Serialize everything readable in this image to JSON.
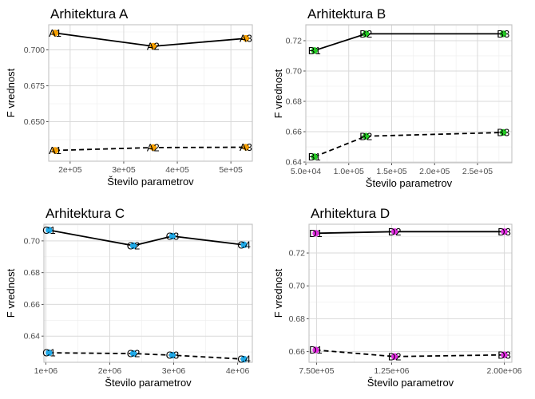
{
  "chart_data": [
    {
      "type": "line",
      "title": "Arhitektura A",
      "xlabel": "Število parametrov",
      "ylabel": "F vrednost",
      "xlim": [
        160000,
        540000
      ],
      "ylim": [
        0.6225,
        0.7175
      ],
      "x_ticks": [
        200000,
        300000,
        400000,
        500000
      ],
      "x_tick_labels": [
        "2e+05",
        "3e+05",
        "4e+05",
        "5e+05"
      ],
      "y_ticks": [
        0.65,
        0.675,
        0.7
      ],
      "y_tick_labels": [
        "0.650",
        "0.675",
        "0.700"
      ],
      "color": "#F8A000",
      "series": [
        {
          "style": "solid",
          "points": [
            {
              "x": 172000,
              "y": 0.7117,
              "label": "A1"
            },
            {
              "x": 355000,
              "y": 0.7025,
              "label": "A2"
            },
            {
              "x": 528000,
              "y": 0.708,
              "label": "A3"
            }
          ]
        },
        {
          "style": "dashed",
          "points": [
            {
              "x": 172000,
              "y": 0.63,
              "label": "A1"
            },
            {
              "x": 355000,
              "y": 0.632,
              "label": "A2"
            },
            {
              "x": 528000,
              "y": 0.6322,
              "label": "A3"
            }
          ]
        }
      ],
      "grid": true,
      "legend": "none"
    },
    {
      "type": "line",
      "title": "Arhitektura B",
      "xlabel": "Število parametrov",
      "ylabel": "F vrednost",
      "xlim": [
        50000,
        290000
      ],
      "ylim": [
        0.6395,
        0.7305
      ],
      "x_ticks": [
        50000,
        100000,
        150000,
        200000,
        250000
      ],
      "x_tick_labels": [
        "5.0e+04",
        "1.0e+05",
        "1.5e+05",
        "2.0e+05",
        "2.5e+05"
      ],
      "y_ticks": [
        0.64,
        0.66,
        0.68,
        0.7,
        0.72
      ],
      "y_tick_labels": [
        "0.64",
        "0.66",
        "0.68",
        "0.70",
        "0.72"
      ],
      "color": "#22CC22",
      "series": [
        {
          "style": "solid",
          "points": [
            {
              "x": 60000,
              "y": 0.7135,
              "label": "B1"
            },
            {
              "x": 120000,
              "y": 0.7245,
              "label": "B2"
            },
            {
              "x": 280000,
              "y": 0.7245,
              "label": "B3"
            }
          ]
        },
        {
          "style": "dashed",
          "points": [
            {
              "x": 60000,
              "y": 0.6435,
              "label": "B1"
            },
            {
              "x": 120000,
              "y": 0.657,
              "label": "B2"
            },
            {
              "x": 280000,
              "y": 0.6595,
              "label": "B3"
            }
          ]
        }
      ],
      "grid": true,
      "legend": "none"
    },
    {
      "type": "line",
      "title": "Arhitektura C",
      "xlabel": "Število parametrov",
      "ylabel": "F vrednost",
      "xlim": [
        970000,
        4230000
      ],
      "ylim": [
        0.6235,
        0.7105
      ],
      "x_ticks": [
        1000000,
        2000000,
        3000000,
        4000000
      ],
      "x_tick_labels": [
        "1e+06",
        "2e+06",
        "3e+06",
        "4e+06"
      ],
      "y_ticks": [
        0.64,
        0.66,
        0.68,
        0.7
      ],
      "y_tick_labels": [
        "0.64",
        "0.66",
        "0.68",
        "0.70"
      ],
      "color": "#1EA9E8",
      "series": [
        {
          "style": "solid",
          "points": [
            {
              "x": 1050000,
              "y": 0.7068,
              "label": "C1"
            },
            {
              "x": 2370000,
              "y": 0.697,
              "label": "C2"
            },
            {
              "x": 2980000,
              "y": 0.703,
              "label": "C3"
            },
            {
              "x": 4100000,
              "y": 0.6975,
              "label": "C4"
            }
          ]
        },
        {
          "style": "dashed",
          "points": [
            {
              "x": 1050000,
              "y": 0.6295,
              "label": "C1"
            },
            {
              "x": 2370000,
              "y": 0.629,
              "label": "C2"
            },
            {
              "x": 2980000,
              "y": 0.628,
              "label": "C3"
            },
            {
              "x": 4100000,
              "y": 0.6255,
              "label": "C4"
            }
          ]
        }
      ],
      "grid": true,
      "legend": "none"
    },
    {
      "type": "line",
      "title": "Arhitektura D",
      "xlabel": "Število parametrov",
      "ylabel": "F vrednost",
      "xlim": [
        700000,
        2050000
      ],
      "ylim": [
        0.6535,
        0.7375
      ],
      "x_ticks": [
        750000,
        1250000,
        2000000
      ],
      "x_tick_labels": [
        "7.50e+05",
        "1.25e+06",
        "2.00e+06"
      ],
      "y_ticks": [
        0.66,
        0.68,
        0.7,
        0.72
      ],
      "y_tick_labels": [
        "0.66",
        "0.68",
        "0.70",
        "0.72"
      ],
      "color": "#E62EE6",
      "series": [
        {
          "style": "solid",
          "points": [
            {
              "x": 745000,
              "y": 0.732,
              "label": "D1"
            },
            {
              "x": 1270000,
              "y": 0.733,
              "label": "D2"
            },
            {
              "x": 2000000,
              "y": 0.733,
              "label": "D3"
            }
          ]
        },
        {
          "style": "dashed",
          "points": [
            {
              "x": 745000,
              "y": 0.661,
              "label": "D1"
            },
            {
              "x": 1270000,
              "y": 0.657,
              "label": "D2"
            },
            {
              "x": 2000000,
              "y": 0.658,
              "label": "D3"
            }
          ]
        }
      ],
      "grid": true,
      "legend": "none"
    }
  ]
}
